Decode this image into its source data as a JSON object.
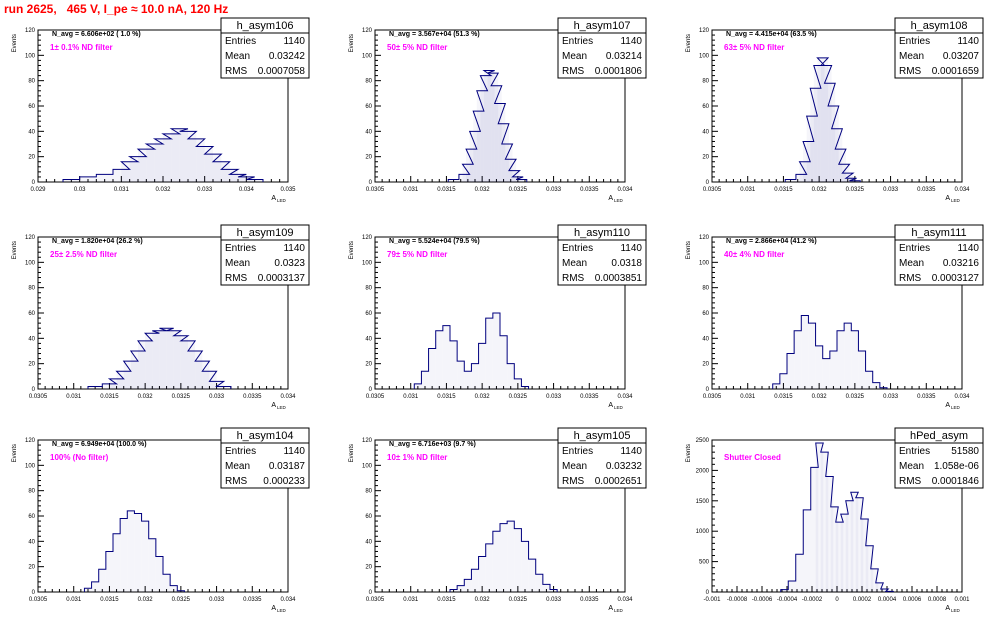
{
  "header": {
    "run_title": "run 2625,   465 V, I_pe ≈ 10.0 nA, 120 Hz"
  },
  "colors": {
    "histogram": "#00007f",
    "annotation": "#ff00ff",
    "title": "#ff0000",
    "frame": "#000000"
  },
  "stats_labels": {
    "entries": "Entries",
    "mean": "Mean",
    "rms": "RMS"
  },
  "ylabel": "Events",
  "xlabel": "A",
  "xlabel_sub": "LED",
  "chart_data": [
    {
      "type": "bar",
      "name": "h_asym106",
      "navg": "N_avg = 6.606e+02 ( 1.0 %)",
      "annotation": "1± 0.1% ND filter",
      "stats": {
        "entries": "1140",
        "mean": "0.03242",
        "rms": "0.0007058"
      },
      "xlim": [
        0.029,
        0.035
      ],
      "xticks": [
        "0.029",
        "0.03",
        "0.031",
        "0.032",
        "0.033",
        "0.034",
        "0.035"
      ],
      "ylim": [
        0,
        120
      ],
      "yticks": [
        "0",
        "20",
        "40",
        "60",
        "80",
        "100",
        "120"
      ],
      "x": [
        0.0298,
        0.0302,
        0.0306,
        0.031,
        0.0312,
        0.0314,
        0.0316,
        0.0318,
        0.032,
        0.0322,
        0.0324,
        0.0326,
        0.0328,
        0.033,
        0.0332,
        0.0334,
        0.0336,
        0.0338,
        0.034,
        0.0342
      ],
      "values": [
        2,
        4,
        6,
        10,
        16,
        20,
        26,
        30,
        34,
        38,
        42,
        40,
        34,
        28,
        22,
        16,
        10,
        6,
        4,
        2
      ]
    },
    {
      "type": "bar",
      "name": "h_asym107",
      "navg": "N_avg = 3.567e+04 (51.3 %)",
      "annotation": "50± 5% ND filter",
      "stats": {
        "entries": "1140",
        "mean": "0.03214",
        "rms": "0.0001806"
      },
      "xlim": [
        0.0305,
        0.034
      ],
      "xticks": [
        "0.0305",
        "0.031",
        "0.0315",
        "0.032",
        "0.0325",
        "0.033",
        "0.0335",
        "0.034"
      ],
      "ylim": [
        0,
        120
      ],
      "yticks": [
        "0",
        "20",
        "40",
        "60",
        "80",
        "100",
        "120"
      ],
      "x": [
        0.0316,
        0.03175,
        0.0318,
        0.03185,
        0.0319,
        0.03195,
        0.032,
        0.03205,
        0.0321,
        0.03215,
        0.0322,
        0.03225,
        0.0323,
        0.03235,
        0.0324,
        0.03245,
        0.0325,
        0.03255
      ],
      "values": [
        2,
        6,
        14,
        26,
        40,
        56,
        72,
        84,
        88,
        86,
        76,
        62,
        46,
        30,
        18,
        9,
        4,
        2
      ]
    },
    {
      "type": "bar",
      "name": "h_asym108",
      "navg": "N_avg = 4.415e+04 (63.5 %)",
      "annotation": "63± 5% ND filter",
      "stats": {
        "entries": "1140",
        "mean": "0.03207",
        "rms": "0.0001659"
      },
      "xlim": [
        0.0305,
        0.034
      ],
      "xticks": [
        "0.0305",
        "0.031",
        "0.0315",
        "0.032",
        "0.0325",
        "0.033",
        "0.0335",
        "0.034"
      ],
      "ylim": [
        0,
        120
      ],
      "yticks": [
        "0",
        "20",
        "40",
        "60",
        "80",
        "100",
        "120"
      ],
      "x": [
        0.0316,
        0.03175,
        0.0318,
        0.03185,
        0.0319,
        0.03195,
        0.032,
        0.03205,
        0.0321,
        0.03215,
        0.0322,
        0.03225,
        0.0323,
        0.03235,
        0.0324,
        0.03245,
        0.0325
      ],
      "values": [
        2,
        6,
        16,
        32,
        52,
        74,
        92,
        98,
        92,
        78,
        60,
        42,
        26,
        14,
        7,
        3,
        1
      ]
    },
    {
      "type": "bar",
      "name": "h_asym109",
      "navg": "N_avg = 1.820e+04 (26.2 %)",
      "annotation": "25± 2.5% ND filter",
      "stats": {
        "entries": "1140",
        "mean": "0.0323",
        "rms": "0.0003137"
      },
      "xlim": [
        0.0305,
        0.034
      ],
      "xticks": [
        "0.0305",
        "0.031",
        "0.0315",
        "0.032",
        "0.0325",
        "0.033",
        "0.0335",
        "0.034"
      ],
      "ylim": [
        0,
        120
      ],
      "yticks": [
        "0",
        "20",
        "40",
        "60",
        "80",
        "100",
        "120"
      ],
      "x": [
        0.0313,
        0.0315,
        0.0316,
        0.0317,
        0.0318,
        0.0319,
        0.032,
        0.0321,
        0.0322,
        0.0323,
        0.0324,
        0.0325,
        0.0326,
        0.0327,
        0.0328,
        0.0329,
        0.033,
        0.0331
      ],
      "values": [
        2,
        4,
        8,
        14,
        22,
        30,
        38,
        44,
        46,
        48,
        46,
        42,
        38,
        30,
        22,
        14,
        6,
        2
      ]
    },
    {
      "type": "bar",
      "name": "h_asym110",
      "navg": "N_avg = 5.524e+04 (79.5 %)",
      "annotation": "79± 5% ND filter",
      "stats": {
        "entries": "1140",
        "mean": "0.0318",
        "rms": "0.0003851"
      },
      "xlim": [
        0.0305,
        0.034
      ],
      "xticks": [
        "0.0305",
        "0.031",
        "0.0315",
        "0.032",
        "0.0325",
        "0.033",
        "0.0335",
        "0.034"
      ],
      "ylim": [
        0,
        120
      ],
      "yticks": [
        "0",
        "20",
        "40",
        "60",
        "80",
        "100",
        "120"
      ],
      "x": [
        0.0311,
        0.0312,
        0.0313,
        0.0314,
        0.0315,
        0.0316,
        0.0317,
        0.0318,
        0.0319,
        0.032,
        0.0321,
        0.0322,
        0.0323,
        0.0324,
        0.0325,
        0.0326
      ],
      "values": [
        4,
        14,
        32,
        46,
        50,
        38,
        22,
        14,
        20,
        36,
        56,
        60,
        42,
        20,
        8,
        2
      ]
    },
    {
      "type": "bar",
      "name": "h_asym111",
      "navg": "N_avg = 2.866e+04 (41.2 %)",
      "annotation": "40± 4% ND filter",
      "stats": {
        "entries": "1140",
        "mean": "0.03216",
        "rms": "0.0003127"
      },
      "xlim": [
        0.0305,
        0.034
      ],
      "xticks": [
        "0.0305",
        "0.031",
        "0.0315",
        "0.032",
        "0.0325",
        "0.033",
        "0.0335",
        "0.034"
      ],
      "ylim": [
        0,
        120
      ],
      "yticks": [
        "0",
        "20",
        "40",
        "60",
        "80",
        "100",
        "120"
      ],
      "x": [
        0.0314,
        0.0315,
        0.0316,
        0.0317,
        0.0318,
        0.0319,
        0.032,
        0.0321,
        0.0322,
        0.0323,
        0.0324,
        0.0325,
        0.0326,
        0.0327,
        0.0328,
        0.0329
      ],
      "values": [
        4,
        12,
        28,
        46,
        58,
        52,
        34,
        24,
        30,
        46,
        52,
        46,
        30,
        14,
        5,
        1
      ]
    },
    {
      "type": "bar",
      "name": "h_asym104",
      "navg": "N_avg = 6.949e+04 (100.0 %)",
      "annotation": "100% (No filter)",
      "stats": {
        "entries": "1140",
        "mean": "0.03187",
        "rms": "0.000233"
      },
      "xlim": [
        0.0305,
        0.034
      ],
      "xticks": [
        "0.0305",
        "0.031",
        "0.0315",
        "0.032",
        "0.0325",
        "0.033",
        "0.0335",
        "0.034"
      ],
      "ylim": [
        0,
        120
      ],
      "yticks": [
        "0",
        "20",
        "40",
        "60",
        "80",
        "100",
        "120"
      ],
      "x": [
        0.0312,
        0.0313,
        0.0314,
        0.0315,
        0.0316,
        0.0317,
        0.0318,
        0.0319,
        0.032,
        0.0321,
        0.0322,
        0.0323,
        0.0324,
        0.0325
      ],
      "values": [
        3,
        8,
        18,
        32,
        46,
        58,
        64,
        62,
        56,
        42,
        28,
        14,
        5,
        1
      ]
    },
    {
      "type": "bar",
      "name": "h_asym105",
      "navg": "N_avg = 6.716e+03 (9.7 %)",
      "annotation": "10± 1% ND filter",
      "stats": {
        "entries": "1140",
        "mean": "0.03232",
        "rms": "0.0002651"
      },
      "xlim": [
        0.0305,
        0.034
      ],
      "xticks": [
        "0.0305",
        "0.031",
        "0.0315",
        "0.032",
        "0.0325",
        "0.033",
        "0.0335",
        "0.034"
      ],
      "ylim": [
        0,
        120
      ],
      "yticks": [
        "0",
        "20",
        "40",
        "60",
        "80",
        "100",
        "120"
      ],
      "x": [
        0.0316,
        0.0317,
        0.0318,
        0.0319,
        0.032,
        0.0321,
        0.0322,
        0.0323,
        0.0324,
        0.0325,
        0.0326,
        0.0327,
        0.0328,
        0.0329,
        0.033
      ],
      "values": [
        2,
        5,
        10,
        18,
        28,
        38,
        48,
        54,
        56,
        50,
        40,
        26,
        14,
        6,
        2
      ]
    },
    {
      "type": "bar",
      "name": "hPed_asym",
      "navg": "",
      "annotation": "Shutter Closed",
      "stats": {
        "entries": "51580",
        "mean": "1.058e-06",
        "rms": "0.0001846"
      },
      "xlim": [
        -0.001,
        0.001
      ],
      "xticks": [
        "-0.001",
        "-0.0008",
        "-0.0006",
        "-0.0004",
        "-0.0002",
        "0",
        "0.0002",
        "0.0004",
        "0.0006",
        "0.0008",
        "0.001"
      ],
      "ylim": [
        0,
        2500
      ],
      "yticks": [
        "0",
        "500",
        "1000",
        "1500",
        "2000",
        "2500"
      ],
      "x": [
        -0.00042,
        -0.00036,
        -0.0003,
        -0.00024,
        -0.00018,
        -0.00014,
        -0.0001,
        -6e-05,
        -2e-05,
        2e-05,
        6e-05,
        0.0001,
        0.00014,
        0.00018,
        0.00022,
        0.00026,
        0.0003,
        0.00034,
        0.00038,
        0.00042
      ],
      "values": [
        40,
        180,
        620,
        1350,
        2050,
        2450,
        2300,
        1900,
        1400,
        1150,
        1280,
        1500,
        1640,
        1550,
        1200,
        760,
        380,
        150,
        50,
        10
      ]
    }
  ]
}
